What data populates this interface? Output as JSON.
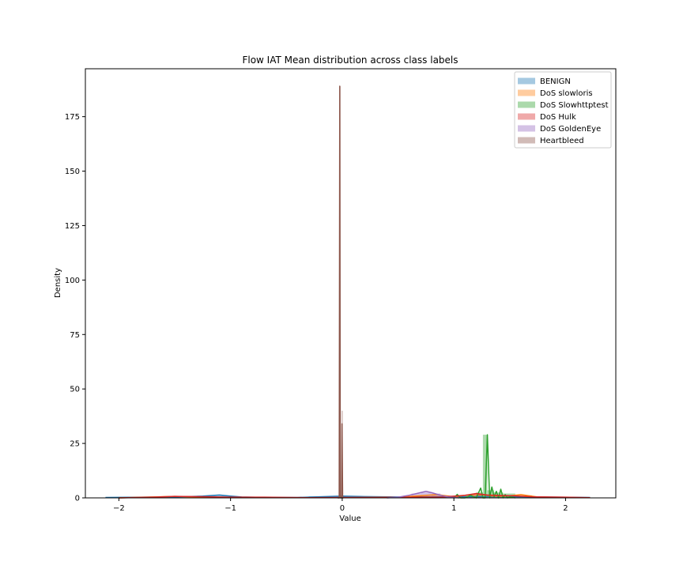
{
  "chart_data": {
    "type": "histogram_kde",
    "title": "Flow IAT Mean distribution across class labels",
    "xlabel": "Value",
    "ylabel": "Density",
    "xlim": [
      -2.3,
      2.45
    ],
    "ylim": [
      0,
      197
    ],
    "xticks": [
      -2,
      -1,
      0,
      1,
      2
    ],
    "xtick_labels": [
      "−2",
      "−1",
      "0",
      "1",
      "2"
    ],
    "yticks": [
      0,
      25,
      50,
      75,
      100,
      125,
      150,
      175
    ],
    "ytick_labels": [
      "0",
      "25",
      "50",
      "75",
      "100",
      "125",
      "150",
      "175"
    ],
    "grid": false,
    "legend_position": "upper right",
    "series": [
      {
        "name": "BENIGN",
        "color": "#1f77b4",
        "hist": [
          [
            -2.12,
            -1.9,
            0.2
          ],
          [
            -1.9,
            -1.6,
            0.3
          ],
          [
            -1.6,
            -1.3,
            0.4
          ],
          [
            -1.3,
            -1.0,
            1.0
          ],
          [
            -1.0,
            -0.6,
            0.4
          ],
          [
            -0.6,
            -0.3,
            0.3
          ],
          [
            -0.3,
            -0.04,
            0.7
          ],
          [
            -0.04,
            0.04,
            0.8
          ],
          [
            0.04,
            0.4,
            0.5
          ],
          [
            0.4,
            0.8,
            0.4
          ],
          [
            0.8,
            1.2,
            0.5
          ],
          [
            1.2,
            1.6,
            0.6
          ],
          [
            1.6,
            2.0,
            0.3
          ],
          [
            2.0,
            2.2,
            0.2
          ]
        ],
        "kde_x": [
          -2.12,
          -1.8,
          -1.5,
          -1.25,
          -1.1,
          -1.0,
          -0.9,
          -0.7,
          -0.4,
          -0.2,
          0.0,
          0.2,
          0.5,
          0.8,
          1.0,
          1.3,
          1.6,
          1.9,
          2.22
        ],
        "kde_y": [
          0.2,
          0.3,
          0.4,
          0.8,
          1.3,
          0.8,
          0.4,
          0.2,
          0.2,
          0.5,
          0.8,
          0.6,
          0.4,
          0.5,
          0.5,
          0.6,
          0.5,
          0.3,
          0.2
        ]
      },
      {
        "name": "DoS slowloris",
        "color": "#ff7f0e",
        "hist": [
          [
            0.8,
            0.95,
            1.0
          ],
          [
            1.15,
            1.3,
            1.5
          ],
          [
            1.55,
            1.7,
            1.2
          ]
        ],
        "kde_x": [
          -2.0,
          -1.7,
          -1.5,
          -1.3,
          -0.8,
          0.0,
          0.5,
          0.85,
          1.0,
          1.2,
          1.35,
          1.45,
          1.6,
          1.75,
          2.0
        ],
        "kde_y": [
          0.0,
          0.4,
          0.7,
          0.4,
          0.1,
          0.1,
          0.3,
          1.5,
          0.5,
          1.8,
          0.8,
          0.7,
          1.5,
          0.4,
          0.1
        ]
      },
      {
        "name": "DoS Slowhttptest",
        "color": "#2ca02c",
        "hist": [
          [
            1.2,
            1.26,
            2.5
          ],
          [
            1.26,
            1.3,
            29.0
          ],
          [
            1.3,
            1.36,
            3.5
          ],
          [
            1.36,
            1.44,
            2.5
          ],
          [
            1.44,
            1.55,
            2.0
          ]
        ],
        "kde_x": [
          1.0,
          1.03,
          1.06,
          1.1,
          1.15,
          1.2,
          1.24,
          1.26,
          1.28,
          1.3,
          1.32,
          1.34,
          1.36,
          1.38,
          1.4,
          1.42,
          1.44,
          1.46,
          1.48,
          1.5,
          1.55
        ],
        "kde_y": [
          0.0,
          1.6,
          0.0,
          0.0,
          1.2,
          0.0,
          4.5,
          0.0,
          0.0,
          29.0,
          0.0,
          5.0,
          0.5,
          3.0,
          0.0,
          4.0,
          0.0,
          1.5,
          0.0,
          0.5,
          0.0
        ]
      },
      {
        "name": "DoS Hulk",
        "color": "#d62728",
        "hist": [
          [
            -0.03,
            -0.01,
            1.0
          ],
          [
            1.1,
            1.25,
            1.5
          ]
        ],
        "kde_x": [
          -2.0,
          -1.7,
          -1.5,
          -1.2,
          -1.0,
          -0.7,
          -0.3,
          0.0,
          0.3,
          0.6,
          0.9,
          1.1,
          1.2,
          1.3,
          1.5,
          1.7,
          2.0,
          2.22
        ],
        "kde_y": [
          0.0,
          0.3,
          0.7,
          0.5,
          0.3,
          0.3,
          0.1,
          0.2,
          0.2,
          0.3,
          0.4,
          1.2,
          2.0,
          1.3,
          1.0,
          0.5,
          0.3,
          0.1
        ]
      },
      {
        "name": "DoS GoldenEye",
        "color": "#9467bd",
        "hist": [
          [
            0.62,
            0.7,
            2.0
          ],
          [
            0.7,
            0.8,
            2.5
          ],
          [
            0.8,
            0.88,
            2.0
          ]
        ],
        "kde_x": [
          0.4,
          0.5,
          0.6,
          0.7,
          0.75,
          0.8,
          0.88,
          0.95,
          1.05
        ],
        "kde_y": [
          0.0,
          0.3,
          1.2,
          2.4,
          3.0,
          2.4,
          1.2,
          0.4,
          0.0
        ]
      },
      {
        "name": "Heartbleed",
        "color": "#8c564b",
        "hist": [
          [
            -0.025,
            -0.015,
            189.0
          ],
          [
            -0.015,
            -0.005,
            0.0
          ],
          [
            -0.005,
            0.005,
            40.0
          ]
        ],
        "kde_x": [
          -0.04,
          -0.027,
          -0.022,
          -0.017,
          -0.015,
          -0.012,
          -0.005,
          -0.002,
          0.004,
          0.01
        ],
        "kde_y": [
          0.0,
          0.0,
          189.0,
          0.0,
          0.0,
          0.0,
          0.0,
          34.0,
          0.0,
          0.0
        ]
      }
    ]
  }
}
